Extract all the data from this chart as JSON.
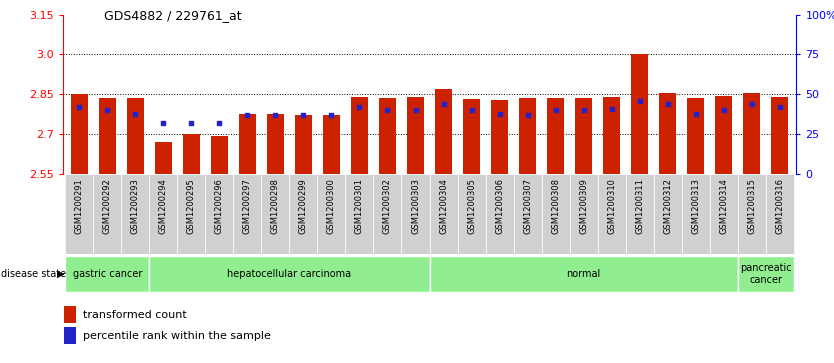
{
  "title": "GDS4882 / 229761_at",
  "samples": [
    "GSM1200291",
    "GSM1200292",
    "GSM1200293",
    "GSM1200294",
    "GSM1200295",
    "GSM1200296",
    "GSM1200297",
    "GSM1200298",
    "GSM1200299",
    "GSM1200300",
    "GSM1200301",
    "GSM1200302",
    "GSM1200303",
    "GSM1200304",
    "GSM1200305",
    "GSM1200306",
    "GSM1200307",
    "GSM1200308",
    "GSM1200309",
    "GSM1200310",
    "GSM1200311",
    "GSM1200312",
    "GSM1200313",
    "GSM1200314",
    "GSM1200315",
    "GSM1200316"
  ],
  "transformed_count": [
    2.85,
    2.838,
    2.836,
    2.672,
    2.7,
    2.693,
    2.775,
    2.775,
    2.772,
    2.772,
    2.84,
    2.835,
    2.84,
    2.87,
    2.832,
    2.83,
    2.835,
    2.836,
    2.836,
    2.84,
    3.003,
    2.855,
    2.837,
    2.843,
    2.855,
    2.84
  ],
  "percentile_rank": [
    42,
    40,
    38,
    32,
    32,
    32,
    37,
    37,
    37,
    37,
    42,
    40,
    40,
    44,
    40,
    38,
    37,
    40,
    40,
    41,
    46,
    44,
    38,
    40,
    44,
    42
  ],
  "ylim_left": [
    2.55,
    3.15
  ],
  "ylim_right": [
    0,
    100
  ],
  "yticks_left": [
    2.55,
    2.7,
    2.85,
    3.0,
    3.15
  ],
  "yticks_right": [
    0,
    25,
    50,
    75,
    100
  ],
  "ytick_labels_right": [
    "0",
    "25",
    "50",
    "75",
    "100%"
  ],
  "bar_color": "#CC2200",
  "dot_color": "#2222CC",
  "bar_bottom": 2.55,
  "disease_groups": [
    {
      "label": "gastric cancer",
      "start": 0,
      "end": 3
    },
    {
      "label": "hepatocellular carcinoma",
      "start": 3,
      "end": 13
    },
    {
      "label": "normal",
      "start": 13,
      "end": 24
    },
    {
      "label": "pancreatic\ncancer",
      "start": 24,
      "end": 26
    }
  ],
  "group_color": "#90EE90",
  "background_color": "#ffffff",
  "plot_bg_color": "#ffffff",
  "tick_label_bg": "#D0D0D0",
  "bar_width": 0.6
}
